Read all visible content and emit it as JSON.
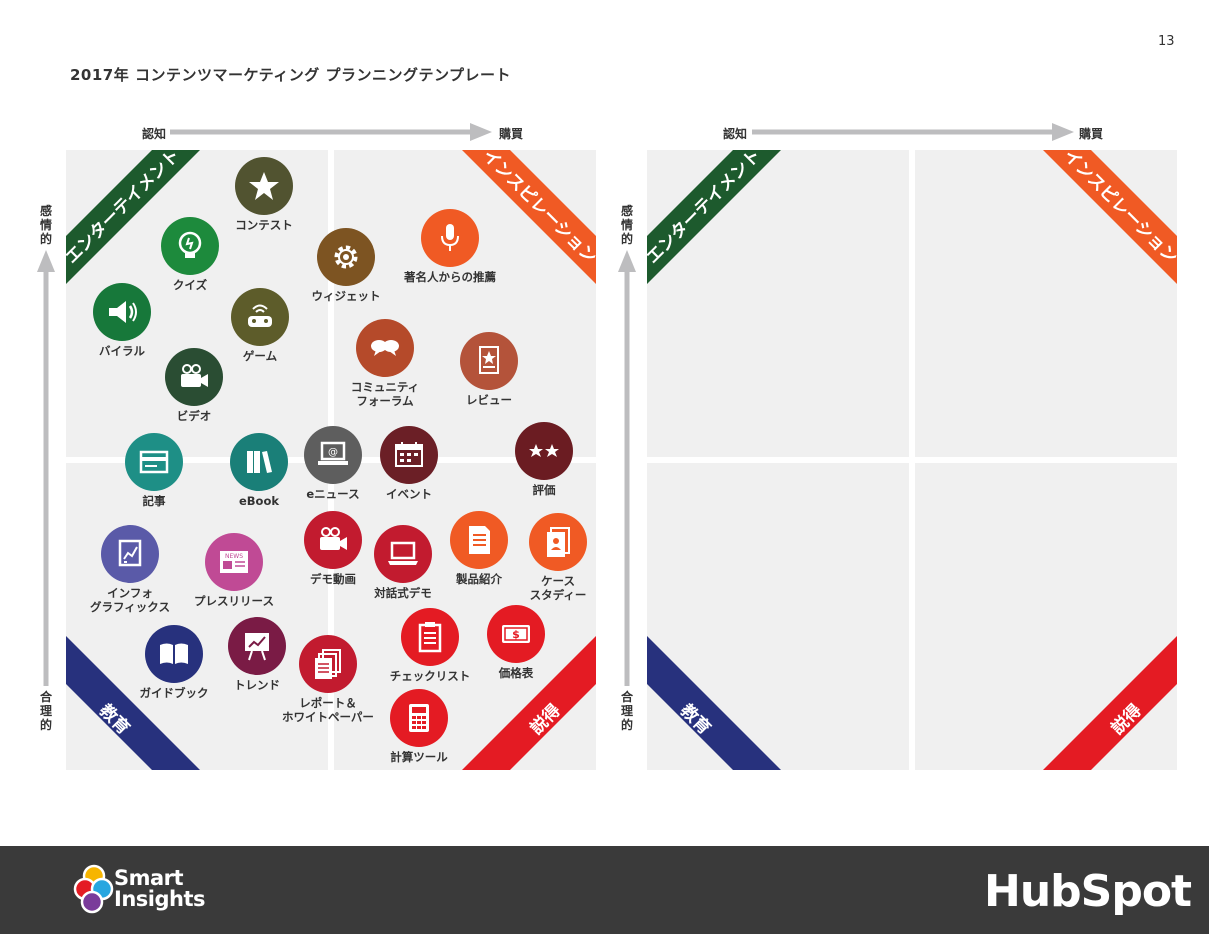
{
  "page_number": "13",
  "title": "2017年 コンテンツマーケティング プランニングテンプレート",
  "axis": {
    "x_left": "認知",
    "x_right": "購買",
    "y_top": "感情的",
    "y_bottom": "合理的"
  },
  "quadrants": {
    "top_left": "エンターテイメント",
    "top_right": "インスピレーション",
    "bottom_left": "教育",
    "bottom_right": "説得"
  },
  "colors": {
    "entertainment": "#1d5a2d",
    "inspiration": "#f05a24",
    "education": "#27317d",
    "persuasion": "#e41b23",
    "quad_bg": "#f0f0f0",
    "arrow": "#bdbdbf",
    "footer": "#3a3a3a"
  },
  "items": [
    {
      "label": "コンテスト",
      "icon": "star-icon",
      "color": "#515330"
    },
    {
      "label": "クイズ",
      "icon": "lightbulb-icon",
      "color": "#1d8a3c"
    },
    {
      "label": "バイラル",
      "icon": "megaphone-icon",
      "color": "#17783a"
    },
    {
      "label": "ゲーム",
      "icon": "game-controller-icon",
      "color": "#5d5c2a"
    },
    {
      "label": "ビデオ",
      "icon": "video-camera-icon",
      "color": "#2a4d33"
    },
    {
      "label": "ウィジェット",
      "icon": "gear-icon",
      "color": "#7d5422"
    },
    {
      "label": "著名人からの推薦",
      "icon": "microphone-icon",
      "color": "#f05a24"
    },
    {
      "label": "コミュニティ\nフォーラム",
      "icon": "chat-bubbles-icon",
      "color": "#b54a2a"
    },
    {
      "label": "レビュー",
      "icon": "review-card-icon",
      "color": "#b4533a"
    },
    {
      "label": "記事",
      "icon": "article-icon",
      "color": "#1e8f86"
    },
    {
      "label": "eBook",
      "icon": "books-icon",
      "color": "#1a7f78"
    },
    {
      "label": "eニュース",
      "icon": "laptop-email-icon",
      "color": "#5e5e5e"
    },
    {
      "label": "イベント",
      "icon": "calendar-icon",
      "color": "#6b1f26"
    },
    {
      "label": "評価",
      "icon": "two-stars-icon",
      "color": "#6b1c22"
    },
    {
      "label": "インフォ\nグラフィックス",
      "icon": "infographic-icon",
      "color": "#5a5aa8"
    },
    {
      "label": "プレスリリース",
      "icon": "news-icon",
      "color": "#c04a95"
    },
    {
      "label": "デモ動画",
      "icon": "video-camera-icon",
      "color": "#c21b2f"
    },
    {
      "label": "対話式デモ",
      "icon": "laptop-icon",
      "color": "#c21b2f"
    },
    {
      "label": "製品紹介",
      "icon": "document-icon",
      "color": "#f05a24"
    },
    {
      "label": "ケース\nスタディー",
      "icon": "case-study-icon",
      "color": "#f05a24"
    },
    {
      "label": "ガイドブック",
      "icon": "open-book-icon",
      "color": "#27317d"
    },
    {
      "label": "トレンド",
      "icon": "trend-chart-icon",
      "color": "#7a1b45"
    },
    {
      "label": "レポート＆\nホワイトペーパー",
      "icon": "papers-stack-icon",
      "color": "#c21b2f"
    },
    {
      "label": "チェックリスト",
      "icon": "clipboard-icon",
      "color": "#e41b23"
    },
    {
      "label": "価格表",
      "icon": "money-icon",
      "color": "#e41b23"
    },
    {
      "label": "計算ツール",
      "icon": "calculator-icon",
      "color": "#e41b23"
    }
  ],
  "footer": {
    "left_logo_line1": "Smart",
    "left_logo_line2": "Insights",
    "right_logo": "HubSpot"
  }
}
